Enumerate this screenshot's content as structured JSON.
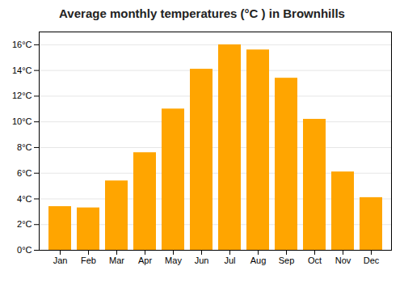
{
  "chart_data": {
    "type": "bar",
    "title": "Average monthly temperatures (°C ) in Brownhills",
    "categories": [
      "Jan",
      "Feb",
      "Mar",
      "Apr",
      "May",
      "Jun",
      "Jul",
      "Aug",
      "Sep",
      "Oct",
      "Nov",
      "Dec"
    ],
    "values": [
      3.4,
      3.3,
      5.4,
      7.6,
      11.0,
      14.1,
      16.0,
      15.6,
      13.4,
      10.2,
      6.1,
      4.1
    ],
    "color": "#FFA500",
    "ylim": [
      0,
      17
    ],
    "yticks": [
      {
        "value": 0,
        "label": "0°C"
      },
      {
        "value": 2,
        "label": "2°C"
      },
      {
        "value": 4,
        "label": "4°C"
      },
      {
        "value": 6,
        "label": "6°C"
      },
      {
        "value": 8,
        "label": "8°C"
      },
      {
        "value": 10,
        "label": "10°C"
      },
      {
        "value": 12,
        "label": "12°C"
      },
      {
        "value": 14,
        "label": "14°C"
      },
      {
        "value": 16,
        "label": "16°C"
      }
    ],
    "grid": true
  }
}
